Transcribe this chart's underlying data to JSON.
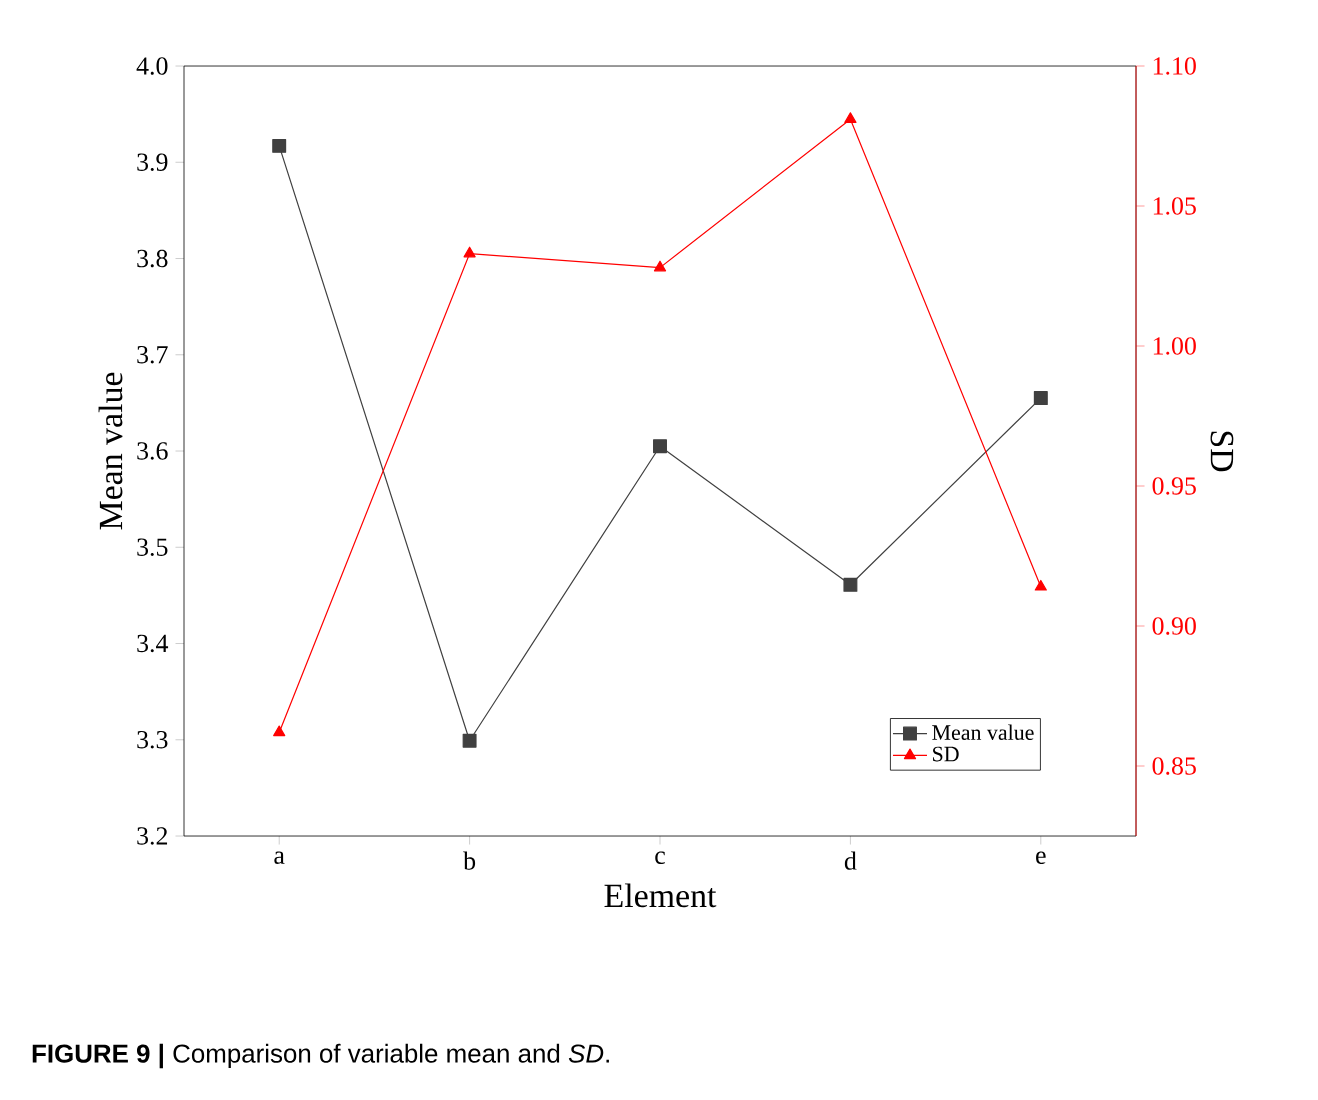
{
  "chart_data": {
    "type": "line",
    "xlabel": "Element",
    "ylabel": "Mean value",
    "y2label": "SD",
    "categories": [
      "a",
      "b",
      "c",
      "d",
      "e"
    ],
    "series": [
      {
        "name": "Mean value",
        "color": "#404040",
        "marker": "square",
        "values": [
          3.917,
          3.299,
          3.605,
          3.461,
          3.655
        ]
      },
      {
        "name": "SD",
        "color": "#ff0000",
        "marker": "triangle",
        "axis": "y2",
        "values": [
          0.862,
          1.033,
          1.028,
          1.081,
          0.914
        ]
      }
    ],
    "ylim": [
      3.2,
      4.0
    ],
    "yticks": [
      3.2,
      3.3,
      3.4,
      3.5,
      3.6,
      3.7,
      3.8,
      3.9,
      {
        "value": 4.0,
        "label": "4.0"
      }
    ],
    "y2lim": [
      0.825,
      1.1
    ],
    "y2ticks": [
      0.85,
      {
        "value": 0.9,
        "label": "0.90"
      },
      0.95,
      {
        "value": 1.0,
        "label": "1.00"
      },
      1.05,
      {
        "value": 1.1,
        "label": "1.10"
      }
    ],
    "legend": "bottom right",
    "line_style": "solid",
    "annotations": [
      "**FIGURE 9 |** Comparison of variable mean and *SD*."
    ]
  }
}
